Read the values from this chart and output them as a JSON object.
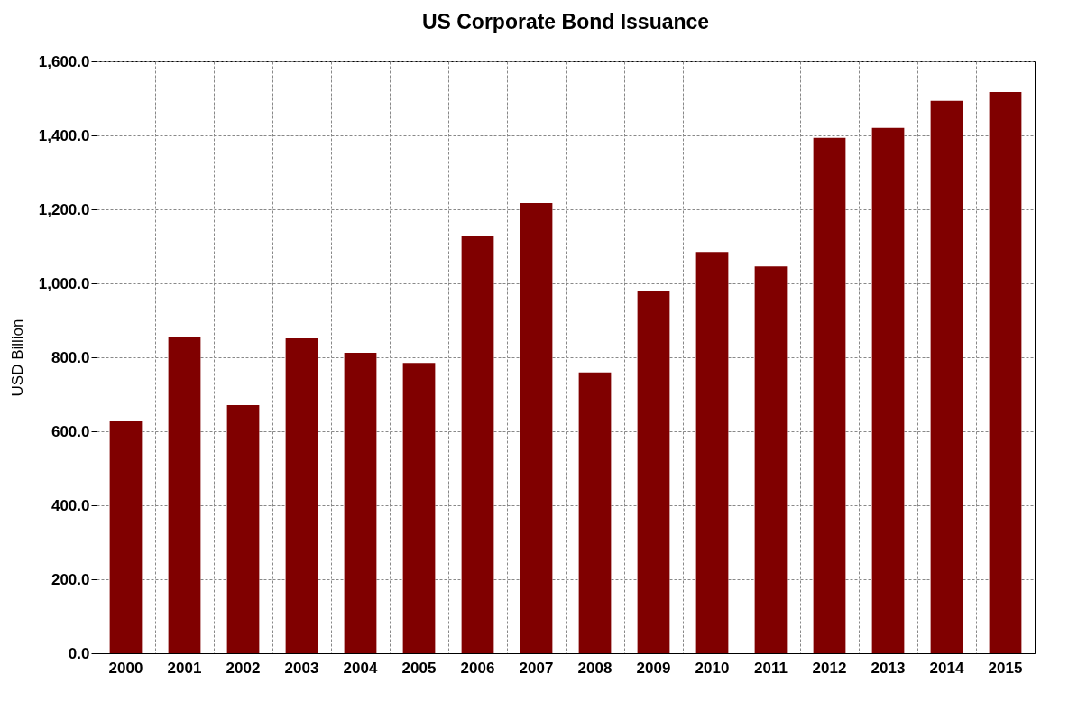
{
  "chart_data": {
    "type": "bar",
    "title": "US Corporate Bond Issuance",
    "ylabel": "USD Billion",
    "categories": [
      "2000",
      "2001",
      "2002",
      "2003",
      "2004",
      "2005",
      "2006",
      "2007",
      "2008",
      "2009",
      "2010",
      "2011",
      "2012",
      "2013",
      "2014",
      "2015"
    ],
    "values": [
      627,
      856,
      671,
      851,
      812,
      785,
      1127,
      1217,
      759,
      978,
      1085,
      1046,
      1393,
      1420,
      1493,
      1517
    ],
    "color": "#800000",
    "ylim": [
      0,
      1600
    ],
    "yticks": [
      {
        "value": 0,
        "label": "0.0"
      },
      {
        "value": 200,
        "label": "200.0"
      },
      {
        "value": 400,
        "label": "400.0"
      },
      {
        "value": 600,
        "label": "600.0"
      },
      {
        "value": 800,
        "label": "800.0"
      },
      {
        "value": 1000,
        "label": "1,000.0"
      },
      {
        "value": 1200,
        "label": "1,200.0"
      },
      {
        "value": 1400,
        "label": "1,400.0"
      },
      {
        "value": 1600,
        "label": "1,600.0"
      }
    ],
    "grid": true
  }
}
